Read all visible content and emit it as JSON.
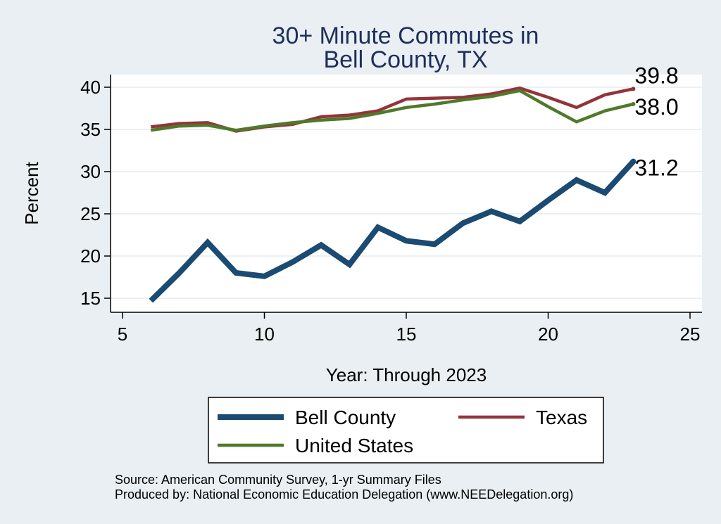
{
  "chart_data": {
    "type": "line",
    "title": [
      "30+ Minute Commutes in",
      "Bell County, TX"
    ],
    "xlabel": "Year: Through 2023",
    "ylabel": "Percent",
    "xlim": [
      5,
      25
    ],
    "ylim": [
      14,
      41.5
    ],
    "xticks": [
      5,
      10,
      15,
      20,
      25
    ],
    "yticks": [
      15,
      20,
      25,
      30,
      35,
      40
    ],
    "grid": true,
    "legend_position": "bottom",
    "series": [
      {
        "name": "Bell County",
        "color": "#1b4a72",
        "x": [
          6,
          7,
          8,
          9,
          10,
          11,
          12,
          13,
          14,
          15,
          16,
          17,
          18,
          19,
          20,
          21,
          22,
          23
        ],
        "values": [
          14.7,
          18.0,
          21.6,
          18.0,
          17.6,
          19.3,
          21.3,
          19.0,
          23.4,
          21.8,
          21.4,
          23.9,
          25.3,
          24.1,
          26.6,
          29.0,
          27.5,
          31.2
        ],
        "end_label": "31.2"
      },
      {
        "name": "Texas",
        "color": "#92353a",
        "x": [
          6,
          7,
          8,
          9,
          10,
          11,
          12,
          13,
          14,
          15,
          16,
          17,
          18,
          19,
          20,
          21,
          22,
          23
        ],
        "values": [
          35.3,
          35.7,
          35.8,
          34.8,
          35.3,
          35.6,
          36.5,
          36.7,
          37.2,
          38.6,
          38.7,
          38.8,
          39.2,
          39.9,
          38.8,
          37.6,
          39.1,
          39.8
        ],
        "end_label": "39.8"
      },
      {
        "name": "United States",
        "color": "#4f7a2a",
        "x": [
          6,
          7,
          8,
          9,
          10,
          11,
          12,
          13,
          14,
          15,
          16,
          17,
          18,
          19,
          20,
          21,
          22,
          23
        ],
        "values": [
          34.9,
          35.4,
          35.5,
          34.9,
          35.4,
          35.8,
          36.1,
          36.3,
          36.9,
          37.6,
          38.0,
          38.5,
          38.9,
          39.6,
          37.7,
          35.9,
          37.2,
          38.0
        ],
        "end_label": "38.0"
      }
    ],
    "source": [
      "Source: American Community Survey, 1-yr Summary Files",
      "Produced by: National Economic Education Delegation (www.NEEDelegation.org)"
    ]
  },
  "legend_order": [
    0,
    1,
    2
  ]
}
